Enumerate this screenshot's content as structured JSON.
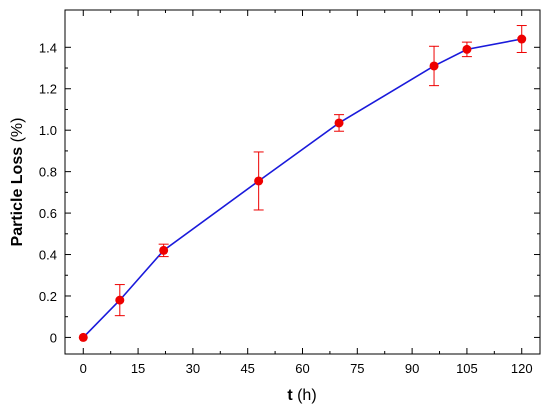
{
  "chart_data": {
    "type": "scatter",
    "title": "",
    "xlabel_bold": "t",
    "xlabel_rest": " (h)",
    "ylabel_bold": "Particle Loss",
    "ylabel_rest": " (%)",
    "xlim": [
      -5,
      125
    ],
    "ylim": [
      -0.08,
      1.58
    ],
    "xticks": [
      0,
      15,
      30,
      45,
      60,
      75,
      90,
      105,
      120
    ],
    "yticks": [
      0,
      0.2,
      0.4,
      0.6,
      0.8,
      1.0,
      1.2,
      1.4
    ],
    "ytick_labels": [
      "0",
      "0.2",
      "0.4",
      "0.6",
      "0.8",
      "1.0",
      "1.2",
      "1.4"
    ],
    "grid": false,
    "series": [
      {
        "x": [
          0,
          10,
          22,
          48,
          70,
          96,
          105,
          120
        ],
        "y": [
          0,
          0.18,
          0.42,
          0.755,
          1.035,
          1.31,
          1.39,
          1.44
        ],
        "err": [
          0,
          0.075,
          0.03,
          0.14,
          0.04,
          0.095,
          0.035,
          0.065
        ],
        "line_color": "#1a1adb",
        "marker_color": "#ee0000"
      }
    ]
  }
}
